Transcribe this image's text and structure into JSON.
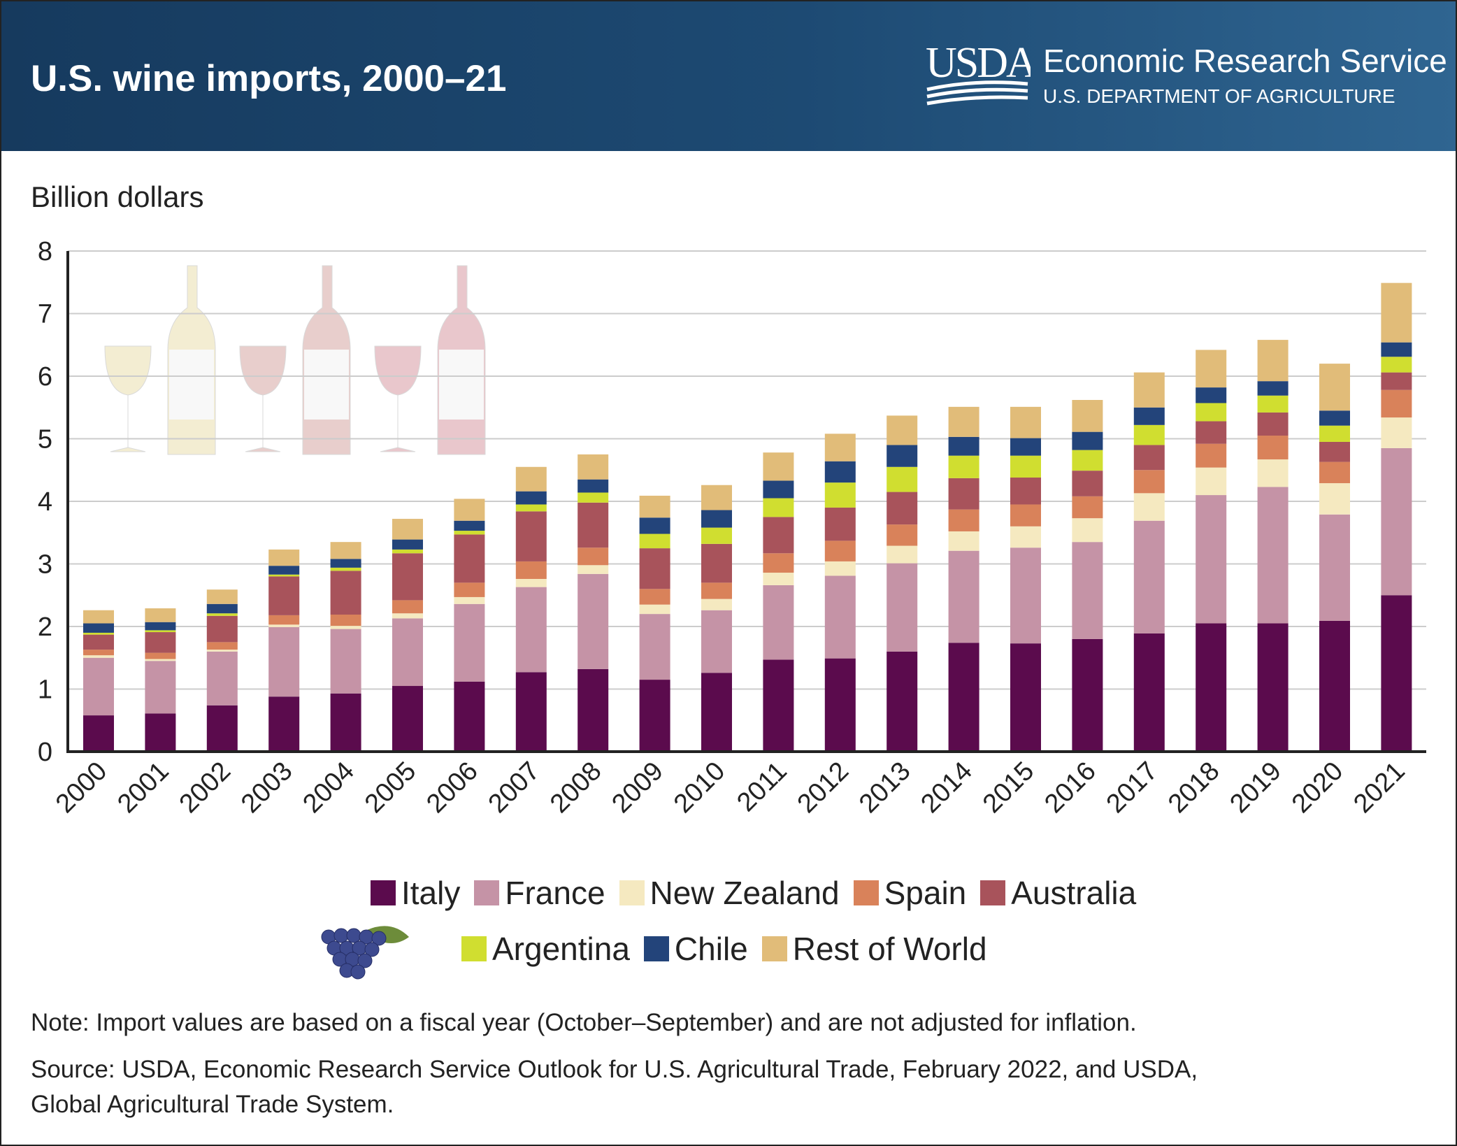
{
  "header": {
    "title": "U.S. wine imports, 2000–21",
    "logo_text": "USDA",
    "agency": "Economic Research Service",
    "department": "U.S. DEPARTMENT OF AGRICULTURE"
  },
  "chart_data": {
    "type": "bar",
    "stacked": true,
    "title": "U.S. wine imports, 2000–21",
    "ylabel": "Billion dollars",
    "xlabel": "",
    "ylim": [
      0,
      8
    ],
    "yticks": [
      0,
      1,
      2,
      3,
      4,
      5,
      6,
      7,
      8
    ],
    "grid": true,
    "legend_placement": "bottom",
    "categories": [
      "2000",
      "2001",
      "2002",
      "2003",
      "2004",
      "2005",
      "2006",
      "2007",
      "2008",
      "2009",
      "2010",
      "2011",
      "2012",
      "2013",
      "2014",
      "2015",
      "2016",
      "2017",
      "2018",
      "2019",
      "2020",
      "2021"
    ],
    "series": [
      {
        "name": "Italy",
        "color": "#5b0b4d",
        "values": [
          0.58,
          0.61,
          0.74,
          0.88,
          0.93,
          1.05,
          1.12,
          1.27,
          1.32,
          1.15,
          1.26,
          1.47,
          1.49,
          1.6,
          1.74,
          1.73,
          1.8,
          1.89,
          2.05,
          2.05,
          2.09,
          2.5
        ]
      },
      {
        "name": "France",
        "color": "#c593a6",
        "values": [
          0.92,
          0.84,
          0.86,
          1.11,
          1.03,
          1.08,
          1.24,
          1.36,
          1.52,
          1.05,
          1.0,
          1.19,
          1.32,
          1.41,
          1.47,
          1.53,
          1.55,
          1.8,
          2.05,
          2.18,
          1.7,
          2.35
        ]
      },
      {
        "name": "New Zealand",
        "color": "#f5e9c0",
        "values": [
          0.04,
          0.03,
          0.03,
          0.04,
          0.05,
          0.08,
          0.11,
          0.13,
          0.14,
          0.15,
          0.18,
          0.2,
          0.23,
          0.28,
          0.31,
          0.34,
          0.38,
          0.44,
          0.44,
          0.44,
          0.5,
          0.49
        ]
      },
      {
        "name": "Spain",
        "color": "#d9825a",
        "values": [
          0.09,
          0.1,
          0.12,
          0.15,
          0.18,
          0.21,
          0.23,
          0.28,
          0.28,
          0.25,
          0.26,
          0.31,
          0.33,
          0.34,
          0.35,
          0.35,
          0.35,
          0.37,
          0.38,
          0.38,
          0.34,
          0.44
        ]
      },
      {
        "name": "Australia",
        "color": "#a8535b",
        "values": [
          0.24,
          0.33,
          0.42,
          0.62,
          0.7,
          0.75,
          0.77,
          0.8,
          0.72,
          0.65,
          0.62,
          0.58,
          0.53,
          0.52,
          0.5,
          0.43,
          0.41,
          0.4,
          0.36,
          0.37,
          0.32,
          0.28
        ]
      },
      {
        "name": "Argentina",
        "color": "#d0de30",
        "values": [
          0.03,
          0.03,
          0.04,
          0.03,
          0.05,
          0.06,
          0.06,
          0.11,
          0.16,
          0.23,
          0.26,
          0.3,
          0.4,
          0.4,
          0.36,
          0.35,
          0.33,
          0.32,
          0.29,
          0.27,
          0.26,
          0.25
        ]
      },
      {
        "name": "Chile",
        "color": "#23447a",
        "values": [
          0.15,
          0.13,
          0.15,
          0.14,
          0.14,
          0.16,
          0.16,
          0.21,
          0.21,
          0.26,
          0.28,
          0.28,
          0.34,
          0.35,
          0.3,
          0.28,
          0.29,
          0.28,
          0.25,
          0.23,
          0.24,
          0.23
        ]
      },
      {
        "name": "Rest of World",
        "color": "#e1bc79",
        "values": [
          0.21,
          0.22,
          0.23,
          0.26,
          0.27,
          0.33,
          0.35,
          0.39,
          0.4,
          0.35,
          0.4,
          0.45,
          0.44,
          0.47,
          0.48,
          0.5,
          0.51,
          0.56,
          0.6,
          0.66,
          0.75,
          0.95
        ]
      }
    ]
  },
  "footer": {
    "note": "Note: Import values are based on a fiscal year (October–September) and are not adjusted for inflation.",
    "source_line1": "Source: USDA, Economic Research Service Outlook for U.S. Agricultural Trade, February 2022, and USDA,",
    "source_line2": "Global Agricultural Trade System."
  }
}
